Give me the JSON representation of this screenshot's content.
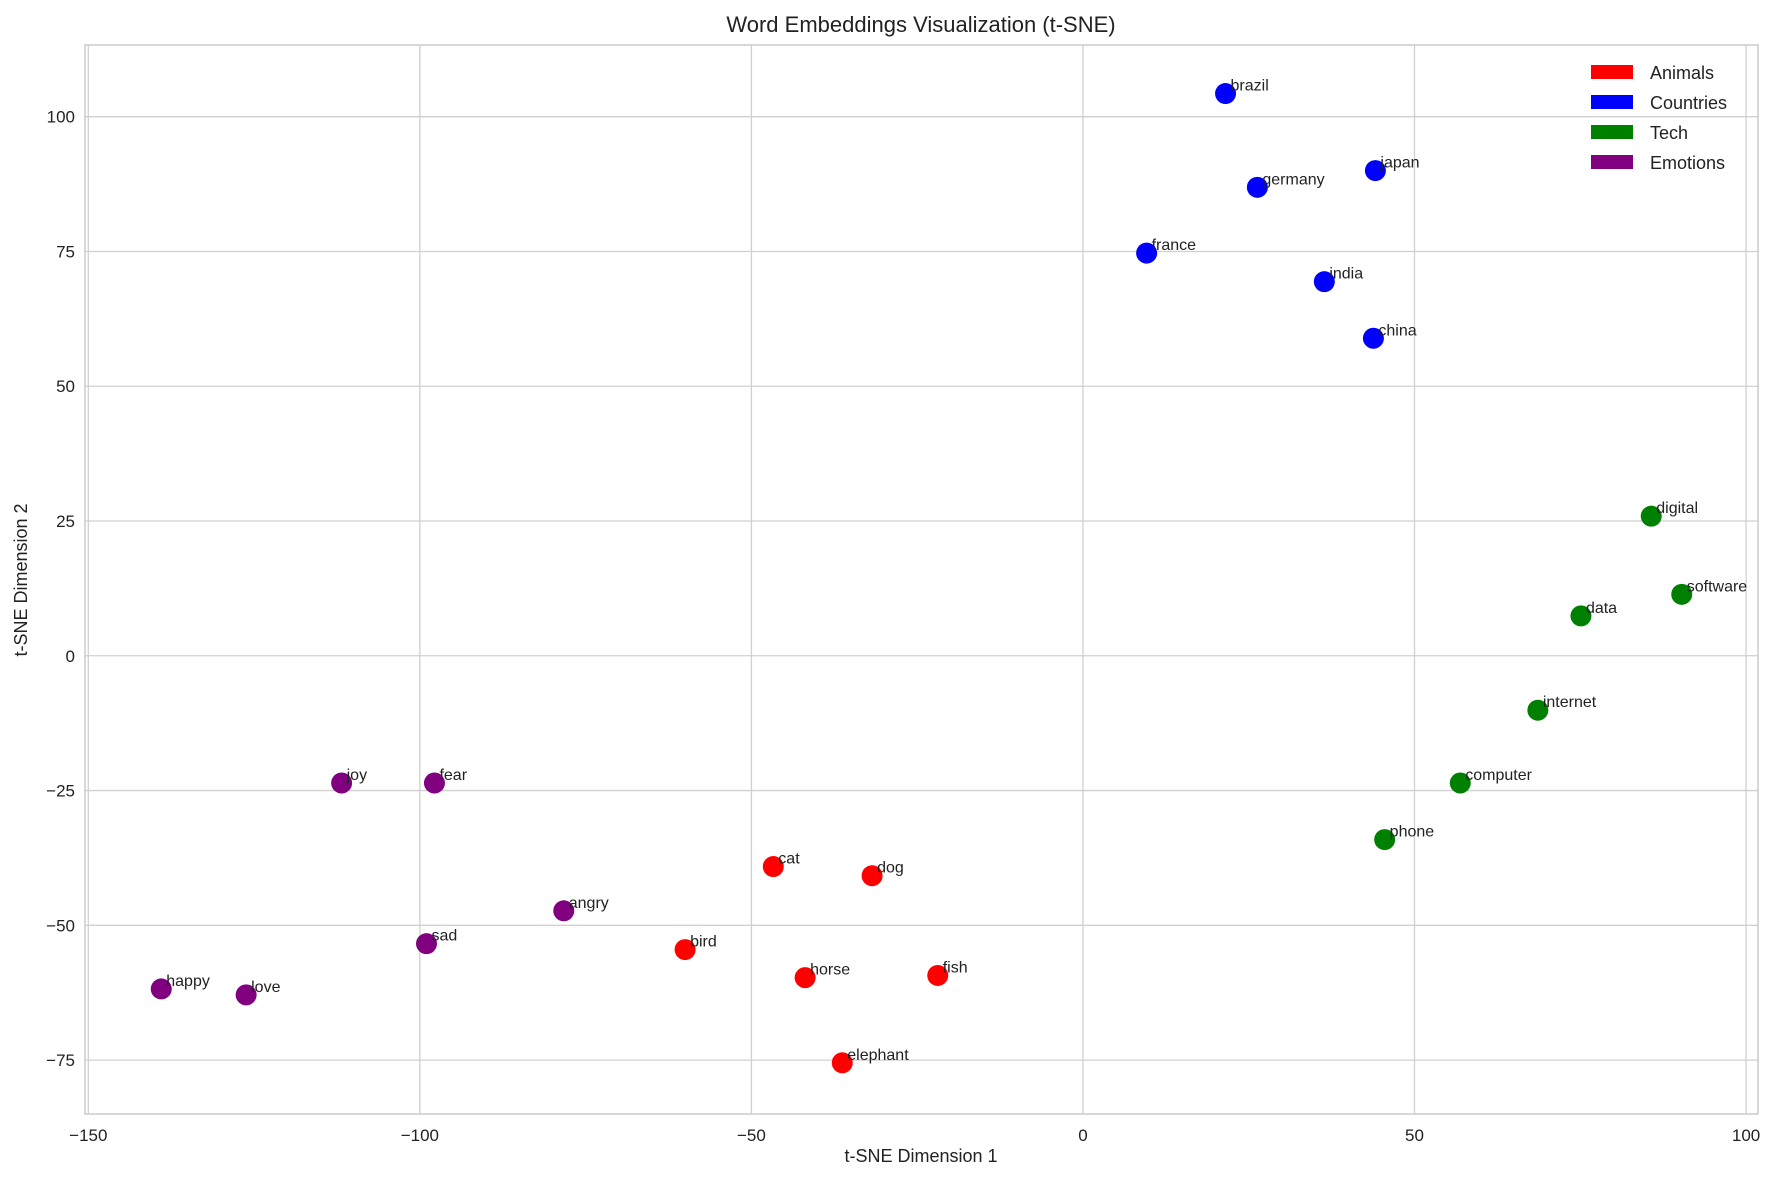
{
  "chart_data": {
    "type": "scatter",
    "title": "Word Embeddings Visualization (t-SNE)",
    "xlabel": "t-SNE Dimension 1",
    "ylabel": "t-SNE Dimension 2",
    "xlim": [
      -150.5,
      101.8
    ],
    "ylim": [
      -85,
      113.3
    ],
    "xticks": [
      -150,
      -100,
      -50,
      0,
      50,
      100
    ],
    "yticks": [
      -75,
      -50,
      -25,
      0,
      25,
      50,
      75,
      100
    ],
    "grid": true,
    "legend_position": "top-right",
    "series": [
      {
        "name": "Animals",
        "color": "#ff0000",
        "points": [
          {
            "label": "cat",
            "x": -46.7,
            "y": -39.1
          },
          {
            "label": "dog",
            "x": -31.8,
            "y": -40.8
          },
          {
            "label": "bird",
            "x": -60.0,
            "y": -54.5
          },
          {
            "label": "horse",
            "x": -41.9,
            "y": -59.7
          },
          {
            "label": "fish",
            "x": -21.9,
            "y": -59.3
          },
          {
            "label": "elephant",
            "x": -36.3,
            "y": -75.5
          }
        ]
      },
      {
        "name": "Countries",
        "color": "#0000ff",
        "points": [
          {
            "label": "brazil",
            "x": 21.5,
            "y": 104.3
          },
          {
            "label": "germany",
            "x": 26.3,
            "y": 86.9
          },
          {
            "label": "japan",
            "x": 44.1,
            "y": 90.0
          },
          {
            "label": "france",
            "x": 9.6,
            "y": 74.7
          },
          {
            "label": "india",
            "x": 36.4,
            "y": 69.4
          },
          {
            "label": "china",
            "x": 43.8,
            "y": 58.9
          }
        ]
      },
      {
        "name": "Tech",
        "color": "#008000",
        "points": [
          {
            "label": "digital",
            "x": 85.7,
            "y": 25.9
          },
          {
            "label": "software",
            "x": 90.3,
            "y": 11.4
          },
          {
            "label": "data",
            "x": 75.1,
            "y": 7.4
          },
          {
            "label": "internet",
            "x": 68.6,
            "y": -10.1
          },
          {
            "label": "computer",
            "x": 56.9,
            "y": -23.6
          },
          {
            "label": "phone",
            "x": 45.5,
            "y": -34.1
          }
        ]
      },
      {
        "name": "Emotions",
        "color": "#800080",
        "points": [
          {
            "label": "joy",
            "x": -111.8,
            "y": -23.6
          },
          {
            "label": "fear",
            "x": -97.8,
            "y": -23.6
          },
          {
            "label": "angry",
            "x": -78.3,
            "y": -47.3
          },
          {
            "label": "sad",
            "x": -99.0,
            "y": -53.4
          },
          {
            "label": "happy",
            "x": -139.0,
            "y": -61.8
          },
          {
            "label": "love",
            "x": -126.2,
            "y": -62.9
          }
        ]
      }
    ]
  }
}
